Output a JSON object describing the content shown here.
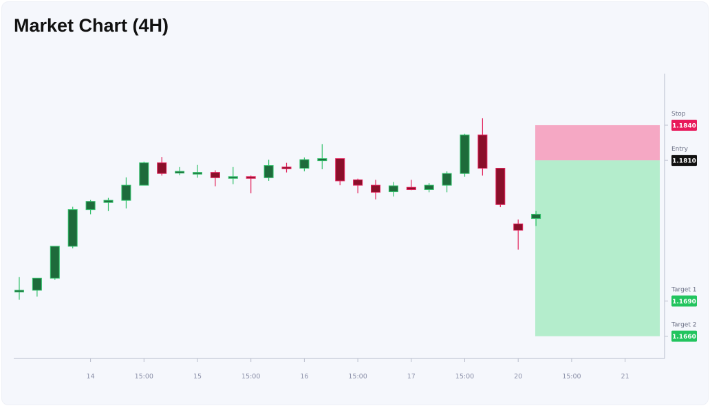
{
  "title": "Market Chart (4H)",
  "chart_data": {
    "type": "candlestick",
    "timeframe": "4H",
    "ylim": [
      1.1641,
      1.1884
    ],
    "x_ticks": [
      {
        "index": 4,
        "label": "14"
      },
      {
        "index": 7,
        "label": "15:00"
      },
      {
        "index": 10,
        "label": "15"
      },
      {
        "index": 13,
        "label": "15:00"
      },
      {
        "index": 16,
        "label": "16"
      },
      {
        "index": 19,
        "label": "15:00"
      },
      {
        "index": 22,
        "label": "17"
      },
      {
        "index": 25,
        "label": "15:00"
      },
      {
        "index": 28,
        "label": "20"
      },
      {
        "index": 31,
        "label": "15:00"
      },
      {
        "index": 34,
        "label": "21"
      }
    ],
    "candles": [
      {
        "o": 1.16983,
        "h": 1.17104,
        "l": 1.16911,
        "c": 1.16992
      },
      {
        "o": 1.16992,
        "h": 1.17095,
        "l": 1.16938,
        "c": 1.17095
      },
      {
        "o": 1.17095,
        "h": 1.17358,
        "l": 1.17081,
        "c": 1.17367
      },
      {
        "o": 1.17367,
        "h": 1.17704,
        "l": 1.17349,
        "c": 1.1768
      },
      {
        "o": 1.1768,
        "h": 1.17762,
        "l": 1.1764,
        "c": 1.1775
      },
      {
        "o": 1.17741,
        "h": 1.1778,
        "l": 1.17667,
        "c": 1.17759
      },
      {
        "o": 1.17759,
        "h": 1.17955,
        "l": 1.1769,
        "c": 1.17888
      },
      {
        "o": 1.17888,
        "h": 1.18089,
        "l": 1.17888,
        "c": 1.18079
      },
      {
        "o": 1.18079,
        "h": 1.18129,
        "l": 1.1797,
        "c": 1.17988
      },
      {
        "o": 1.17997,
        "h": 1.18043,
        "l": 1.17974,
        "c": 1.18006
      },
      {
        "o": 1.17997,
        "h": 1.18061,
        "l": 1.17952,
        "c": 1.17997
      },
      {
        "o": 1.17997,
        "h": 1.18015,
        "l": 1.17879,
        "c": 1.17952
      },
      {
        "o": 1.17952,
        "h": 1.18043,
        "l": 1.17897,
        "c": 1.17961
      },
      {
        "o": 1.17961,
        "h": 1.1797,
        "l": 1.17819,
        "c": 1.17952
      },
      {
        "o": 1.17952,
        "h": 1.18106,
        "l": 1.17925,
        "c": 1.18056
      },
      {
        "o": 1.18043,
        "h": 1.18079,
        "l": 1.17997,
        "c": 1.18033
      },
      {
        "o": 1.18033,
        "h": 1.18125,
        "l": 1.18006,
        "c": 1.18106
      },
      {
        "o": 1.18097,
        "h": 1.18239,
        "l": 1.18024,
        "c": 1.18115
      },
      {
        "o": 1.18115,
        "h": 1.18115,
        "l": 1.17888,
        "c": 1.17925
      },
      {
        "o": 1.17934,
        "h": 1.17944,
        "l": 1.17819,
        "c": 1.17888
      },
      {
        "o": 1.17888,
        "h": 1.17934,
        "l": 1.17767,
        "c": 1.17828
      },
      {
        "o": 1.17833,
        "h": 1.17915,
        "l": 1.17792,
        "c": 1.17883
      },
      {
        "o": 1.1787,
        "h": 1.17934,
        "l": 1.17846,
        "c": 1.17851
      },
      {
        "o": 1.17851,
        "h": 1.17906,
        "l": 1.17828,
        "c": 1.17888
      },
      {
        "o": 1.17888,
        "h": 1.18006,
        "l": 1.17828,
        "c": 1.17988
      },
      {
        "o": 1.17988,
        "h": 1.18326,
        "l": 1.17961,
        "c": 1.18317
      },
      {
        "o": 1.18317,
        "h": 1.18459,
        "l": 1.1797,
        "c": 1.18033
      },
      {
        "o": 1.18033,
        "h": 1.18033,
        "l": 1.17701,
        "c": 1.17723
      },
      {
        "o": 1.17558,
        "h": 1.17595,
        "l": 1.17339,
        "c": 1.17504
      },
      {
        "o": 1.17604,
        "h": 1.17668,
        "l": 1.1754,
        "c": 1.1764
      }
    ],
    "levels": [
      {
        "name": "Stop",
        "value": "1.1840",
        "price": 1.184,
        "color": "#e8195b"
      },
      {
        "name": "Entry",
        "value": "1.1810",
        "price": 1.181,
        "color": "#111111"
      },
      {
        "name": "Target 1",
        "value": "1.1690",
        "price": 1.169,
        "color": "#22c45e"
      },
      {
        "name": "Target 2",
        "value": "1.1660",
        "price": 1.166,
        "color": "#22c45e"
      }
    ],
    "zones": [
      {
        "kind": "risk",
        "from": 1.181,
        "to": 1.184,
        "color": "#f5a8c4"
      },
      {
        "kind": "reward",
        "from": 1.166,
        "to": 1.181,
        "color": "#b4edcc"
      }
    ],
    "colors": {
      "bull_body": "#1e6b3b",
      "bull_wick": "#33c06b",
      "bear_body": "#8a0f2a",
      "bear_wick": "#e2245c",
      "axis": "#b8bccb",
      "tick_label": "#8a8fa8"
    }
  }
}
